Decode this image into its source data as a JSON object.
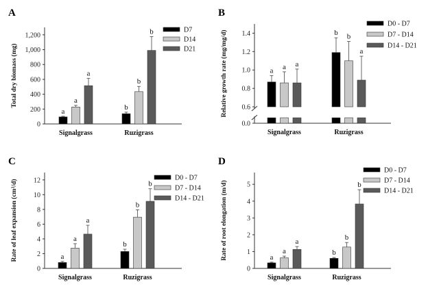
{
  "colors": {
    "series_0": "#000000",
    "series_1": "#c8c8c8",
    "series_2": "#5a5a5a"
  },
  "chart_data": [
    {
      "type": "bar",
      "panel": "A",
      "categories": [
        "Signalgrass",
        "Ruzigrass"
      ],
      "ylabel": "Total dry biomass (mg)",
      "ylim": [
        0,
        1300
      ],
      "yticks": [
        0,
        200,
        400,
        600,
        800,
        1000,
        1200
      ],
      "ytick_labels": [
        "0",
        "200",
        "400",
        "600",
        "800",
        "1,000",
        "1,200"
      ],
      "legend_position": "top-right",
      "series": [
        {
          "name": "D7",
          "values": [
            95,
            138
          ],
          "errors": [
            8,
            20
          ],
          "letters": [
            "a",
            "b"
          ]
        },
        {
          "name": "D14",
          "values": [
            228,
            435
          ],
          "errors": [
            22,
            70
          ],
          "letters": [
            "a",
            "b"
          ]
        },
        {
          "name": "D21",
          "values": [
            515,
            990
          ],
          "errors": [
            100,
            185
          ],
          "letters": [
            "a",
            "b"
          ]
        }
      ]
    },
    {
      "type": "bar",
      "panel": "B",
      "categories": [
        "Signalgrass",
        "Ruzigrass"
      ],
      "ylabel": "Relative growth rate (mg/mg/d)",
      "ylim": [
        0,
        1.5
      ],
      "axis_break": [
        0.05,
        0.6
      ],
      "yticks": [
        0,
        0.6,
        0.8,
        1.0,
        1.2,
        1.4
      ],
      "ytick_labels": [
        "0.0",
        "0.6",
        "0.8",
        "1.0",
        "1.2",
        "1.4"
      ],
      "legend_position": "top-right",
      "series": [
        {
          "name": "D0  -  D7",
          "values": [
            0.87,
            1.19
          ],
          "errors": [
            0.07,
            0.16
          ],
          "letters": [
            "a",
            "b"
          ]
        },
        {
          "name": "D7  -  D14",
          "values": [
            0.86,
            1.1
          ],
          "errors": [
            0.12,
            0.21
          ],
          "letters": [
            "a",
            "b"
          ]
        },
        {
          "name": "D14 - D21",
          "values": [
            0.86,
            0.89
          ],
          "errors": [
            0.15,
            0.26
          ],
          "letters": [
            "a",
            "a"
          ]
        }
      ]
    },
    {
      "type": "bar",
      "panel": "C",
      "categories": [
        "Signalgrass",
        "Ruzigrass"
      ],
      "ylabel": "Rate of leaf expansion (cm²/d)",
      "ylim": [
        0,
        13
      ],
      "yticks": [
        0,
        2,
        4,
        6,
        8,
        10,
        12
      ],
      "ytick_labels": [
        "0",
        "2",
        "4",
        "6",
        "8",
        "10",
        "12"
      ],
      "legend_position": "top-right",
      "series": [
        {
          "name": "D0  -  D7",
          "values": [
            0.8,
            2.3
          ],
          "errors": [
            0.15,
            0.3
          ],
          "letters": [
            "a",
            "b"
          ]
        },
        {
          "name": "D7  -  D14",
          "values": [
            2.75,
            6.95
          ],
          "errors": [
            0.6,
            1.0
          ],
          "letters": [
            "a",
            "b"
          ]
        },
        {
          "name": "D14 - D21",
          "values": [
            4.65,
            9.1
          ],
          "errors": [
            1.2,
            1.7
          ],
          "letters": [
            "a",
            "b"
          ]
        }
      ]
    },
    {
      "type": "bar",
      "panel": "D",
      "categories": [
        "Signalgrass",
        "Ruzigrass"
      ],
      "ylabel": "Rate of root elongation (m/d)",
      "ylim": [
        0,
        5.7
      ],
      "yticks": [
        0,
        1,
        2,
        3,
        4,
        5
      ],
      "ytick_labels": [
        "0",
        "1",
        "2",
        "3",
        "4",
        "5"
      ],
      "legend_position": "top-right",
      "series": [
        {
          "name": "D0  -  D7",
          "values": [
            0.33,
            0.6
          ],
          "errors": [
            0.04,
            0.05
          ],
          "letters": [
            "a",
            "b"
          ]
        },
        {
          "name": "D7  -  D14",
          "values": [
            0.63,
            1.27
          ],
          "errors": [
            0.1,
            0.27
          ],
          "letters": [
            "a",
            "b"
          ]
        },
        {
          "name": "D14 - D21",
          "values": [
            1.13,
            3.83
          ],
          "errors": [
            0.17,
            0.85
          ],
          "letters": [
            "a",
            "b"
          ]
        }
      ]
    }
  ]
}
